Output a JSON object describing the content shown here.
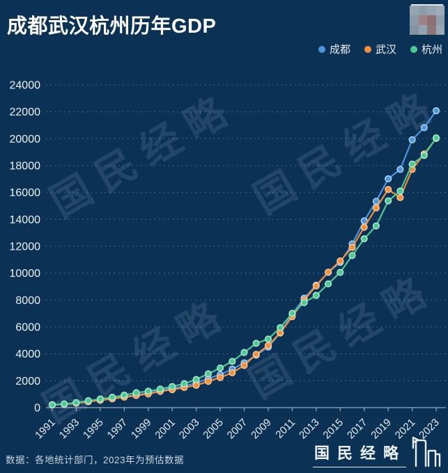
{
  "header": {
    "title": "成都武汉杭州历年GDP"
  },
  "watermark": {
    "text": "国民经略"
  },
  "footer": {
    "source_note": "数据：各地统计部门，2023年为预估数据",
    "brand": "国民经略"
  },
  "censored_logo": {
    "colors": [
      "#96a5b1",
      "#8d9caa",
      "#95a4b0",
      "#9dacb8",
      "#8b9aa8",
      "#9c8186",
      "#8f7077",
      "#8e9daa",
      "#84939f",
      "#93a2b0",
      "#8c767c",
      "#97a6b3"
    ]
  },
  "chart_data": {
    "type": "line",
    "title": "成都武汉杭州历年GDP",
    "x": [
      1991,
      1992,
      1993,
      1994,
      1995,
      1996,
      1997,
      1998,
      1999,
      2000,
      2001,
      2002,
      2003,
      2004,
      2005,
      2006,
      2007,
      2008,
      2009,
      2010,
      2011,
      2012,
      2013,
      2014,
      2015,
      2016,
      2017,
      2018,
      2019,
      2020,
      2021,
      2022,
      2023
    ],
    "x_tick_labels": [
      "1991",
      "1993",
      "1995",
      "1997",
      "1999",
      "2001",
      "2003",
      "2005",
      "2007",
      "2009",
      "2011",
      "2013",
      "2015",
      "2017",
      "2019",
      "2021",
      "2023"
    ],
    "y_ticks": [
      0,
      2000,
      4000,
      6000,
      8000,
      10000,
      12000,
      14000,
      16000,
      18000,
      20000,
      22000,
      24000
    ],
    "ylim": [
      0,
      24000
    ],
    "grid": "dotted horizontal",
    "legend_position": "top-right",
    "series": [
      {
        "name": "成都",
        "color": "#4e96dc",
        "values": [
          220,
          270,
          355,
          460,
          580,
          680,
          800,
          930,
          1100,
          1280,
          1440,
          1590,
          1830,
          2160,
          2450,
          2860,
          3324,
          3901,
          4503,
          5551,
          6951,
          8139,
          9109,
          10057,
          10801,
          12170,
          13889,
          15343,
          17013,
          17717,
          19917,
          20818,
          22075
        ]
      },
      {
        "name": "武汉",
        "color": "#f2903e",
        "values": [
          200,
          245,
          325,
          440,
          550,
          650,
          780,
          900,
          1020,
          1206,
          1335,
          1493,
          1662,
          1956,
          2238,
          2591,
          3141,
          3960,
          4621,
          5566,
          6762,
          8004,
          9051,
          10069,
          10906,
          11913,
          13410,
          14847,
          16223,
          15616,
          17717,
          18866,
          20012
        ]
      },
      {
        "name": "杭州",
        "color": "#4ec994",
        "values": [
          207,
          267,
          372,
          512,
          640,
          770,
          930,
          1106,
          1225,
          1383,
          1568,
          1780,
          2092,
          2515,
          2943,
          3441,
          4100,
          4781,
          5099,
          5946,
          7012,
          7804,
          8344,
          9201,
          10054,
          11314,
          12556,
          13509,
          15373,
          16106,
          18109,
          18753,
          20059
        ]
      }
    ]
  }
}
